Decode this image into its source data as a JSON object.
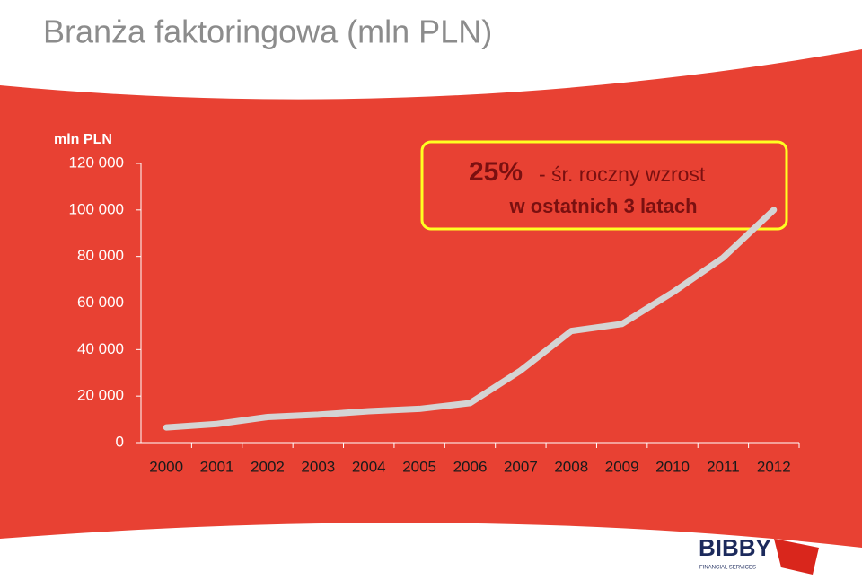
{
  "chart_data": {
    "type": "line",
    "title": "Branża faktoringowa (mln PLN)",
    "y_axis_label": "mln PLN",
    "categories": [
      "2000",
      "2001",
      "2002",
      "2003",
      "2004",
      "2005",
      "2006",
      "2007",
      "2008",
      "2009",
      "2010",
      "2011",
      "2012"
    ],
    "series": [
      {
        "name": "Branża faktoringowa",
        "color": "#d4d4d4",
        "values": [
          6500,
          8000,
          11000,
          12000,
          13500,
          14500,
          17000,
          31000,
          48000,
          51000,
          64500,
          79500,
          100000
        ]
      }
    ],
    "ylim": [
      0,
      120000
    ],
    "yticks": [
      0,
      {
        "value": 20000,
        "label": "20 000"
      },
      {
        "value": 40000,
        "label": "40 000"
      },
      {
        "value": 60000,
        "label": "60 000"
      },
      {
        "value": 80000,
        "label": "80 000"
      },
      {
        "value": 100000,
        "label": "100 000"
      },
      {
        "value": 120000,
        "label": "120 000"
      }
    ],
    "annotation": {
      "highlight": "25%",
      "line1": "- śr. roczny wzrost",
      "line2": "w ostatnich 3 latach"
    },
    "logo": {
      "name": "BIBBY",
      "subtitle": "FINANCIAL SERVICES"
    }
  }
}
